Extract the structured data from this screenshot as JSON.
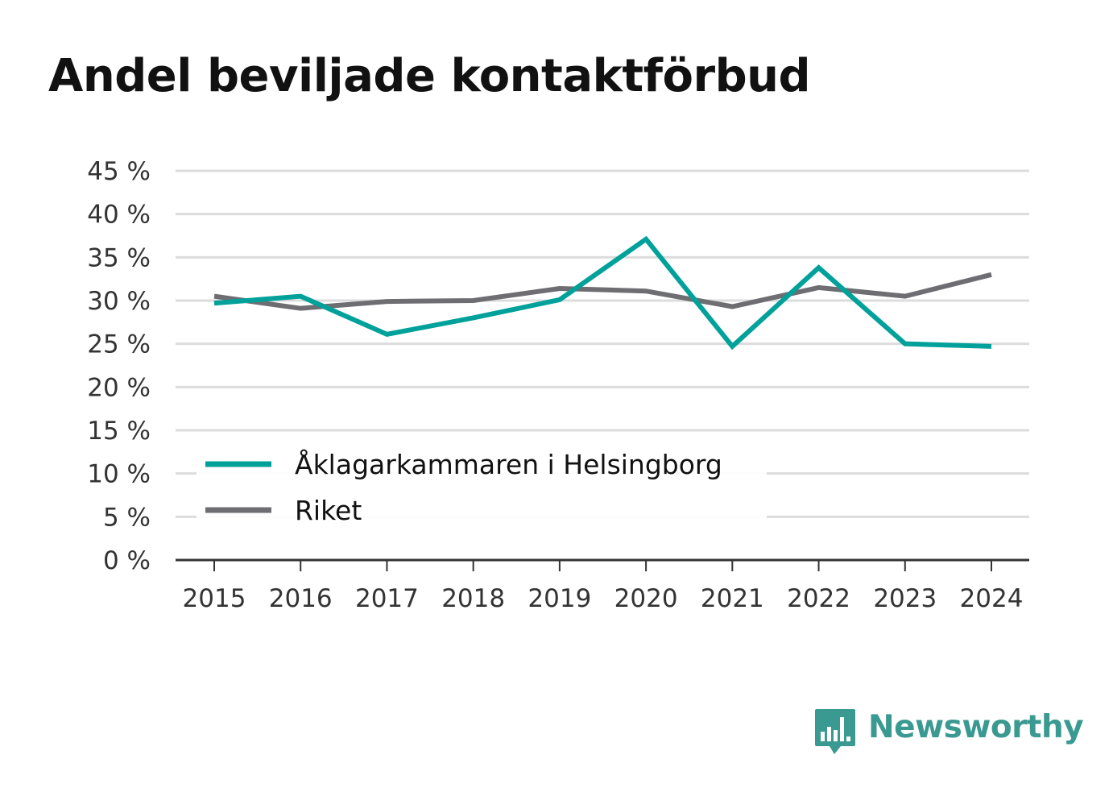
{
  "title": "Andel beviljade kontaktförbud",
  "brand": {
    "name": "Newsworthy",
    "icon": "newsworthy-logo-icon",
    "color": "#3a9a91"
  },
  "chart_data": {
    "type": "line",
    "title": "Andel beviljade kontaktförbud",
    "x": [
      "2015",
      "2016",
      "2017",
      "2018",
      "2019",
      "2020",
      "2021",
      "2022",
      "2023",
      "2024"
    ],
    "series": [
      {
        "name": "Åklagarkammaren i Helsingborg",
        "color": "#00a19a",
        "values": [
          29.7,
          30.5,
          26.1,
          28.0,
          30.1,
          37.1,
          24.7,
          33.8,
          25.0,
          24.7
        ]
      },
      {
        "name": "Riket",
        "color": "#6e6d72",
        "values": [
          30.5,
          29.1,
          29.9,
          30.0,
          31.4,
          31.1,
          29.3,
          31.5,
          30.5,
          33.0
        ]
      }
    ],
    "yticks": [
      "0 %",
      "5 %",
      "10 %",
      "15 %",
      "20 %",
      "25 %",
      "30 %",
      "35 %",
      "40 %",
      "45 %"
    ],
    "ylim": [
      0,
      45
    ],
    "xlabel": "",
    "ylabel": "",
    "grid": true,
    "legend_position": "bottom-left"
  }
}
